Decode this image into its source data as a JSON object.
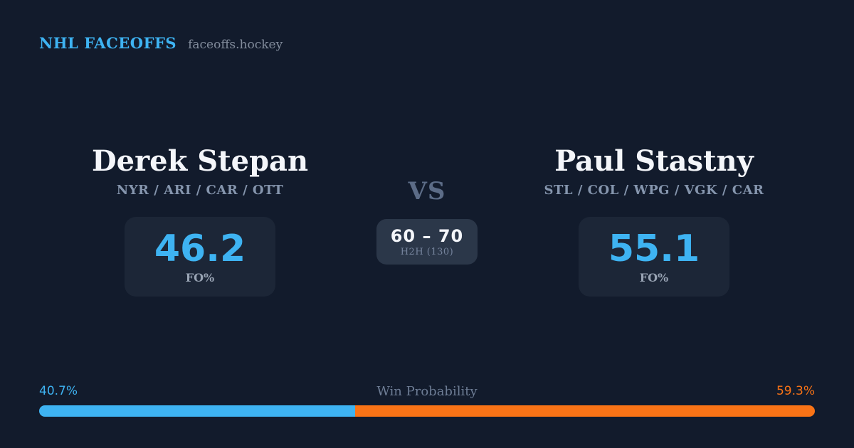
{
  "header": {
    "brand": "NHL FACEOFFS",
    "site": "faceoffs.hockey"
  },
  "matchup": {
    "player_left": {
      "name": "Derek Stepan",
      "teams": "NYR / ARI / CAR / OTT",
      "stat_value": "46.2",
      "stat_label": "FO%"
    },
    "vs_label": "VS",
    "h2h": {
      "score": "60 – 70",
      "label": "H2H (130)"
    },
    "player_right": {
      "name": "Paul Stastny",
      "teams": "STL / COL / WPG / VGK / CAR",
      "stat_value": "55.1",
      "stat_label": "FO%"
    }
  },
  "win_probability": {
    "label": "Win Probability",
    "left_pct_text": "40.7%",
    "right_pct_text": "59.3%",
    "left_value": 40.7,
    "right_value": 59.3
  },
  "colors": {
    "background": "#121b2c",
    "panel": "#1c2637",
    "panel_light": "#2b3749",
    "accent_blue": "#3eb3f2",
    "accent_orange": "#f97316"
  }
}
